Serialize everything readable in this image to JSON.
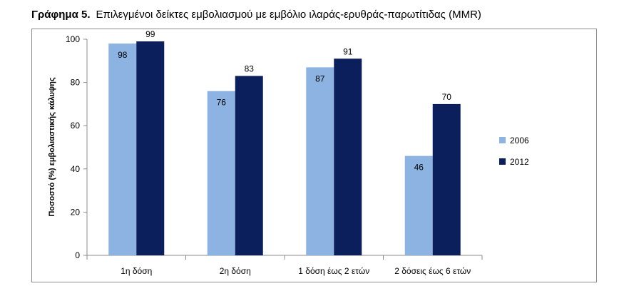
{
  "title_number": "Γράφημα 5.",
  "title_text": "Επιλεγμένοι δείκτες εμβολιασμού με εμβόλιο ιλαράς-ερυθράς-παρωτίτιδας (MMR)",
  "colors": {
    "s2006": "#8db3e2",
    "s2012": "#0b1f5c",
    "axis": "#8c8c8c"
  },
  "chart_data": {
    "type": "bar",
    "title": "Επιλεγμένοι δείκτες εμβολιασμού με εμβόλιο ιλαράς-ερυθράς-παρωτίτιδας (MMR)",
    "categories": [
      "1η δόση",
      "2η δόση",
      "1 δόση έως 2 ετών",
      "2 δόσεις έως 6 ετών"
    ],
    "series": [
      {
        "name": "2006",
        "values": [
          98,
          76,
          87,
          46
        ]
      },
      {
        "name": "2012",
        "values": [
          99,
          83,
          91,
          70
        ]
      }
    ],
    "xlabel": "",
    "ylabel": "Ποσοστό (%) εμβολιαστικής κάλυψης",
    "ylim": [
      0,
      100
    ],
    "yticks": [
      0,
      20,
      40,
      60,
      80,
      100
    ],
    "grid": false,
    "legend": "right"
  }
}
